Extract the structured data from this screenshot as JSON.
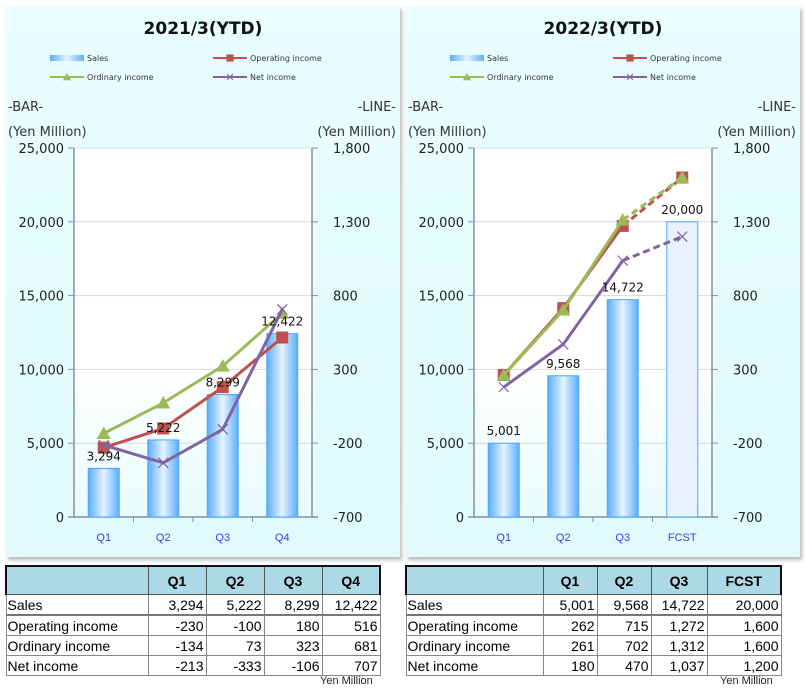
{
  "chart_data": [
    {
      "type": "bar+line",
      "title": "2021/3(YTD)",
      "categories": [
        "Q1",
        "Q2",
        "Q3",
        "Q4"
      ],
      "left_axis": {
        "header": "-BAR-",
        "unit": "(Yen Million)",
        "range": [
          0,
          25000
        ],
        "ticks": [
          "25,000",
          "20,000",
          "15,000",
          "10,000",
          "5,000",
          "0"
        ],
        "tick_values": [
          25000,
          20000,
          15000,
          10000,
          5000,
          0
        ]
      },
      "right_axis": {
        "header": "-LINE-",
        "unit": "(Yen Million)",
        "range": [
          -700,
          1800
        ],
        "ticks": [
          "1,800",
          "1,300",
          "800",
          "300",
          "-200",
          "-700"
        ],
        "tick_values": [
          1800,
          1300,
          800,
          300,
          -200,
          -700
        ]
      },
      "legend": [
        "Sales",
        "Operating income",
        "Ordinary income",
        "Net income"
      ],
      "grid": true,
      "series": [
        {
          "name": "Sales",
          "kind": "bar",
          "axis": "left",
          "values": [
            3294,
            5222,
            8299,
            12422
          ],
          "labels": [
            "3,294",
            "5,222",
            "8,299",
            "12,422"
          ],
          "forecast_from": null
        },
        {
          "name": "Operating income",
          "kind": "line",
          "axis": "right",
          "marker": "square",
          "values": [
            -230,
            -100,
            180,
            516
          ],
          "forecast_from": null
        },
        {
          "name": "Ordinary income",
          "kind": "line",
          "axis": "right",
          "marker": "triangle",
          "values": [
            -134,
            73,
            323,
            681
          ],
          "forecast_from": null
        },
        {
          "name": "Net income",
          "kind": "line",
          "axis": "right",
          "marker": "x",
          "values": [
            -213,
            -333,
            -106,
            707
          ],
          "forecast_from": null
        }
      ]
    },
    {
      "type": "bar+line",
      "title": "2022/3(YTD)",
      "categories": [
        "Q1",
        "Q2",
        "Q3",
        "FCST"
      ],
      "left_axis": {
        "header": "-BAR-",
        "unit": "(Yen Million)",
        "range": [
          0,
          25000
        ],
        "ticks": [
          "25,000",
          "20,000",
          "15,000",
          "10,000",
          "5,000",
          "0"
        ],
        "tick_values": [
          25000,
          20000,
          15000,
          10000,
          5000,
          0
        ]
      },
      "right_axis": {
        "header": "-LINE-",
        "unit": "(Yen Million)",
        "range": [
          -700,
          1800
        ],
        "ticks": [
          "1,800",
          "1,300",
          "800",
          "300",
          "-200",
          "-700"
        ],
        "tick_values": [
          1800,
          1300,
          800,
          300,
          -200,
          -700
        ]
      },
      "legend": [
        "Sales",
        "Operating income",
        "Ordinary income",
        "Net income"
      ],
      "grid": true,
      "series": [
        {
          "name": "Sales",
          "kind": "bar",
          "axis": "left",
          "values": [
            5001,
            9568,
            14722,
            20000
          ],
          "labels": [
            "5,001",
            "9,568",
            "14,722",
            "20,000"
          ],
          "forecast_from": 3
        },
        {
          "name": "Operating income",
          "kind": "line",
          "axis": "right",
          "marker": "square",
          "values": [
            262,
            715,
            1272,
            1600
          ],
          "forecast_from": 3
        },
        {
          "name": "Ordinary income",
          "kind": "line",
          "axis": "right",
          "marker": "triangle",
          "values": [
            261,
            702,
            1312,
            1600
          ],
          "forecast_from": 3
        },
        {
          "name": "Net income",
          "kind": "line",
          "axis": "right",
          "marker": "x",
          "values": [
            180,
            470,
            1037,
            1200
          ],
          "forecast_from": 3
        }
      ]
    }
  ],
  "colors": {
    "Sales": "#4da6ff",
    "Operating income": "#c0504d",
    "Ordinary income": "#9bbb59",
    "Net income": "#8064a2",
    "category_label": "#3a3af0",
    "table_header": "#add8e6"
  },
  "tables": [
    {
      "columns": [
        "",
        "Q1",
        "Q2",
        "Q3",
        "Q4"
      ],
      "rows": [
        [
          "Sales",
          "3,294",
          "5,222",
          "8,299",
          "12,422"
        ],
        [
          "Operating income",
          "-230",
          "-100",
          "180",
          "516"
        ],
        [
          "Ordinary income",
          "-134",
          "73",
          "323",
          "681"
        ],
        [
          "Net income",
          "-213",
          "-333",
          "-106",
          "707"
        ]
      ],
      "unit": "Yen Million"
    },
    {
      "columns": [
        "",
        "Q1",
        "Q2",
        "Q3",
        "FCST"
      ],
      "rows": [
        [
          "Sales",
          "5,001",
          "9,568",
          "14,722",
          "20,000"
        ],
        [
          "Operating income",
          "262",
          "715",
          "1,272",
          "1,600"
        ],
        [
          "Ordinary income",
          "261",
          "702",
          "1,312",
          "1,600"
        ],
        [
          "Net income",
          "180",
          "470",
          "1,037",
          "1,200"
        ]
      ],
      "unit": "Yen Million"
    }
  ]
}
